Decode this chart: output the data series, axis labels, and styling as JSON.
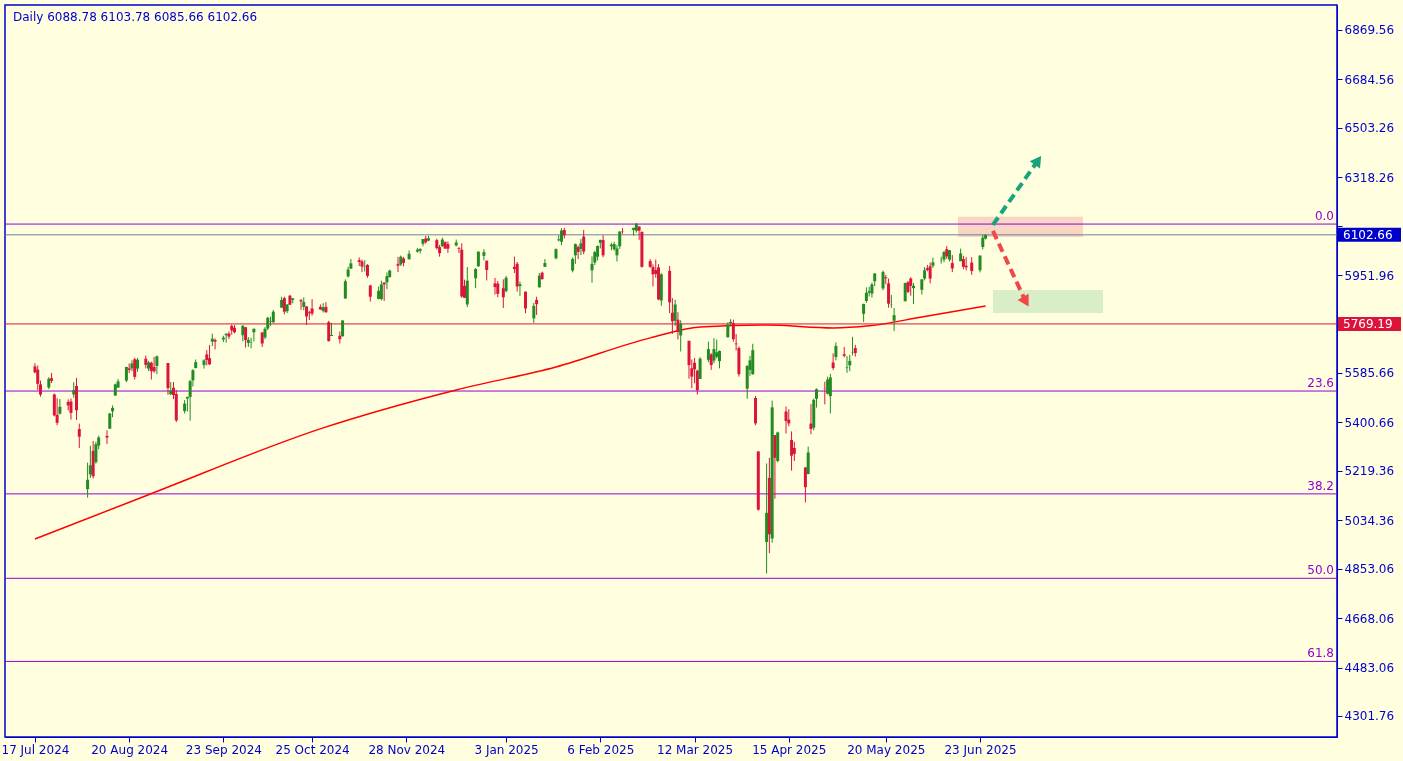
{
  "chart_data": {
    "type": "candlestick",
    "title": "Daily 6088.78 6103.78 6085.66 6102.66",
    "colors": [
      "#228b22",
      "#dc143c"
    ],
    "xlim": [
      "2024-07-08",
      "2025-10-28"
    ],
    "xticks": [
      {
        "value": "2024-07-17",
        "label": "17 Jul 2024"
      },
      {
        "value": "2024-08-20",
        "label": "20 Aug 2024"
      },
      {
        "value": "2024-09-23",
        "label": "23 Sep 2024"
      },
      {
        "value": "2024-10-25",
        "label": "25 Oct 2024"
      },
      {
        "value": "2024-11-28",
        "label": "28 Nov 2024"
      },
      {
        "value": "2025-01-03",
        "label": "3 Jan 2025"
      },
      {
        "value": "2025-02-06",
        "label": "6 Feb 2025"
      },
      {
        "value": "2025-03-12",
        "label": "12 Mar 2025"
      },
      {
        "value": "2025-04-15",
        "label": "15 Apr 2025"
      },
      {
        "value": "2025-05-20",
        "label": "20 May 2025"
      },
      {
        "value": "2025-06-23",
        "label": "23 Jun 2025"
      }
    ],
    "ylim": [
      4223,
      6963
    ],
    "yticks": [
      4301.76,
      4483.06,
      4668.06,
      4853.06,
      5034.36,
      5219.36,
      5400.66,
      5585.66,
      5769.19,
      5951.96,
      {
        "value": 6136.96,
        "label": null
      },
      6318.26,
      6503.26,
      6684.56,
      6869.56
    ],
    "grid": false,
    "series": [
      {
        "x": [
          "2024-07-17",
          "2024-07-18",
          "2024-07-19",
          "2024-07-22",
          "2024-07-23",
          "2024-07-24",
          "2024-07-25",
          "2024-07-26",
          "2024-07-29",
          "2024-07-30",
          "2024-07-31",
          "2024-08-01",
          "2024-08-02",
          "2024-08-05",
          "2024-08-06",
          "2024-08-07",
          "2024-08-08",
          "2024-08-09",
          "2024-08-12",
          "2024-08-13",
          "2024-08-14",
          "2024-08-15",
          "2024-08-16",
          "2024-08-19",
          "2024-08-20",
          "2024-08-21",
          "2024-08-22",
          "2024-08-23",
          "2024-08-26",
          "2024-08-27",
          "2024-08-28",
          "2024-08-29",
          "2024-08-30",
          "2024-09-03",
          "2024-09-04",
          "2024-09-05",
          "2024-09-06",
          "2024-09-09",
          "2024-09-10",
          "2024-09-11",
          "2024-09-12",
          "2024-09-13",
          "2024-09-16",
          "2024-09-17",
          "2024-09-18",
          "2024-09-19",
          "2024-09-20",
          "2024-09-23",
          "2024-09-24",
          "2024-09-25",
          "2024-09-26",
          "2024-09-27",
          "2024-09-30",
          "2024-10-01",
          "2024-10-02",
          "2024-10-03",
          "2024-10-04",
          "2024-10-07",
          "2024-10-08",
          "2024-10-09",
          "2024-10-10",
          "2024-10-11",
          "2024-10-14",
          "2024-10-15",
          "2024-10-16",
          "2024-10-17",
          "2024-10-18",
          "2024-10-21",
          "2024-10-22",
          "2024-10-23",
          "2024-10-24",
          "2024-10-25",
          "2024-10-28",
          "2024-10-29",
          "2024-10-30",
          "2024-10-31",
          "2024-11-01",
          "2024-11-04",
          "2024-11-05",
          "2024-11-06",
          "2024-11-07",
          "2024-11-08",
          "2024-11-11",
          "2024-11-12",
          "2024-11-13",
          "2024-11-14",
          "2024-11-15",
          "2024-11-18",
          "2024-11-19",
          "2024-11-20",
          "2024-11-21",
          "2024-11-22",
          "2024-11-25",
          "2024-11-26",
          "2024-11-27",
          "2024-11-29",
          "2024-12-02",
          "2024-12-03",
          "2024-12-04",
          "2024-12-05",
          "2024-12-06",
          "2024-12-09",
          "2024-12-10",
          "2024-12-11",
          "2024-12-12",
          "2024-12-13",
          "2024-12-16",
          "2024-12-17",
          "2024-12-18",
          "2024-12-19",
          "2024-12-20",
          "2024-12-23",
          "2024-12-24",
          "2024-12-26",
          "2024-12-27",
          "2024-12-30",
          "2024-12-31",
          "2025-01-02",
          "2025-01-03",
          "2025-01-06",
          "2025-01-07",
          "2025-01-08",
          "2025-01-10",
          "2025-01-13",
          "2025-01-14",
          "2025-01-15",
          "2025-01-16",
          "2025-01-17",
          "2025-01-21",
          "2025-01-22",
          "2025-01-23",
          "2025-01-24",
          "2025-01-27",
          "2025-01-28",
          "2025-01-29",
          "2025-01-30",
          "2025-01-31",
          "2025-02-03",
          "2025-02-04",
          "2025-02-05",
          "2025-02-06",
          "2025-02-07",
          "2025-02-10",
          "2025-02-11",
          "2025-02-12",
          "2025-02-13",
          "2025-02-14",
          "2025-02-18",
          "2025-02-19",
          "2025-02-20",
          "2025-02-21",
          "2025-02-24",
          "2025-02-25",
          "2025-02-26",
          "2025-02-27",
          "2025-02-28",
          "2025-03-03",
          "2025-03-04",
          "2025-03-05",
          "2025-03-06",
          "2025-03-07",
          "2025-03-10",
          "2025-03-11",
          "2025-03-12",
          "2025-03-13",
          "2025-03-14",
          "2025-03-17",
          "2025-03-18",
          "2025-03-19",
          "2025-03-20",
          "2025-03-21",
          "2025-03-24",
          "2025-03-25",
          "2025-03-26",
          "2025-03-27",
          "2025-03-28",
          "2025-03-31",
          "2025-04-01",
          "2025-04-02",
          "2025-04-03",
          "2025-04-04",
          "2025-04-07",
          "2025-04-08",
          "2025-04-09",
          "2025-04-10",
          "2025-04-11",
          "2025-04-14",
          "2025-04-15",
          "2025-04-16",
          "2025-04-17",
          "2025-04-21",
          "2025-04-22",
          "2025-04-23",
          "2025-04-24",
          "2025-04-25",
          "2025-04-28",
          "2025-04-29",
          "2025-04-30",
          "2025-05-01",
          "2025-05-02",
          "2025-05-05",
          "2025-05-06",
          "2025-05-07",
          "2025-05-08",
          "2025-05-09",
          "2025-05-12",
          "2025-05-13",
          "2025-05-14",
          "2025-05-15",
          "2025-05-16",
          "2025-05-19",
          "2025-05-20",
          "2025-05-21",
          "2025-05-22",
          "2025-05-23",
          "2025-05-27",
          "2025-05-28",
          "2025-05-29",
          "2025-05-30",
          "2025-06-02",
          "2025-06-03",
          "2025-06-04",
          "2025-06-05",
          "2025-06-06",
          "2025-06-09",
          "2025-06-10",
          "2025-06-11",
          "2025-06-12",
          "2025-06-13",
          "2025-06-16",
          "2025-06-17",
          "2025-06-18",
          "2025-06-20",
          "2025-06-23",
          "2025-06-24",
          "2025-06-25"
        ],
        "ohlc": [
          [
            5610,
            5622,
            5584,
            5588
          ],
          [
            5598,
            5614,
            5522,
            5545
          ],
          [
            5543,
            5557,
            5497,
            5505
          ],
          [
            5531,
            5570,
            5525,
            5564
          ],
          [
            5566,
            5586,
            5548,
            5556
          ],
          [
            5505,
            5509,
            5423,
            5427
          ],
          [
            5429,
            5491,
            5390,
            5399
          ],
          [
            5433,
            5488,
            5430,
            5459
          ],
          [
            5477,
            5487,
            5445,
            5464
          ],
          [
            5479,
            5490,
            5411,
            5436
          ],
          [
            5505,
            5551,
            5493,
            5522
          ],
          [
            5537,
            5567,
            5410,
            5446
          ],
          [
            5376,
            5396,
            5305,
            5347
          ],
          [
            5151,
            5250,
            5119,
            5186
          ],
          [
            5206,
            5313,
            5193,
            5240
          ],
          [
            5294,
            5331,
            5191,
            5199
          ],
          [
            5252,
            5328,
            5246,
            5319
          ],
          [
            5314,
            5351,
            5300,
            5344
          ],
          [
            5350,
            5371,
            5320,
            5344
          ],
          [
            5377,
            5436,
            5377,
            5434
          ],
          [
            5442,
            5464,
            5420,
            5455
          ],
          [
            5501,
            5546,
            5500,
            5543
          ],
          [
            5531,
            5563,
            5530,
            5554
          ],
          [
            5557,
            5609,
            5551,
            5608
          ],
          [
            5603,
            5621,
            5586,
            5597
          ],
          [
            5603,
            5633,
            5592,
            5621
          ],
          [
            5637,
            5643,
            5561,
            5571
          ],
          [
            5602,
            5642,
            5590,
            5635
          ],
          [
            5639,
            5651,
            5603,
            5616
          ],
          [
            5602,
            5631,
            5593,
            5625
          ],
          [
            5624,
            5628,
            5561,
            5592
          ],
          [
            5608,
            5646,
            5586,
            5592
          ],
          [
            5612,
            5651,
            5581,
            5648
          ],
          [
            5623,
            5623,
            5504,
            5529
          ],
          [
            5506,
            5552,
            5503,
            5520
          ],
          [
            5530,
            5552,
            5488,
            5503
          ],
          [
            5507,
            5522,
            5402,
            5408
          ],
          [
            5443,
            5484,
            5434,
            5471
          ],
          [
            5490,
            5497,
            5441,
            5496
          ],
          [
            5496,
            5560,
            5407,
            5555
          ],
          [
            5558,
            5600,
            5535,
            5596
          ],
          [
            5604,
            5636,
            5603,
            5626
          ],
          [
            5615,
            5637,
            5602,
            5633
          ],
          [
            5655,
            5671,
            5614,
            5634
          ],
          [
            5641,
            5690,
            5615,
            5618
          ],
          [
            5703,
            5733,
            5686,
            5714
          ],
          [
            5709,
            5715,
            5674,
            5703
          ],
          [
            5711,
            5725,
            5701,
            5718
          ],
          [
            5727,
            5735,
            5699,
            5732
          ],
          [
            5733,
            5741,
            5713,
            5722
          ],
          [
            5762,
            5767,
            5729,
            5745
          ],
          [
            5755,
            5765,
            5734,
            5738
          ],
          [
            5727,
            5765,
            5704,
            5762
          ],
          [
            5757,
            5757,
            5681,
            5709
          ],
          [
            5698,
            5720,
            5683,
            5710
          ],
          [
            5698,
            5718,
            5678,
            5699
          ],
          [
            5738,
            5752,
            5704,
            5751
          ],
          [
            5737,
            5739,
            5683,
            5696
          ],
          [
            5719,
            5757,
            5712,
            5751
          ],
          [
            5752,
            5796,
            5746,
            5792
          ],
          [
            5778,
            5796,
            5762,
            5780
          ],
          [
            5775,
            5822,
            5775,
            5815
          ],
          [
            5830,
            5871,
            5829,
            5859
          ],
          [
            5866,
            5871,
            5805,
            5815
          ],
          [
            5817,
            5843,
            5810,
            5842
          ],
          [
            5875,
            5878,
            5840,
            5841
          ],
          [
            5859,
            5866,
            5847,
            5865
          ],
          [
            5858,
            5863,
            5822,
            5853
          ],
          [
            5833,
            5869,
            5820,
            5851
          ],
          [
            5835,
            5835,
            5765,
            5797
          ],
          [
            5813,
            5818,
            5784,
            5809
          ],
          [
            5827,
            5862,
            5800,
            5808
          ],
          [
            5833,
            5842,
            5823,
            5823
          ],
          [
            5818,
            5847,
            5812,
            5832
          ],
          [
            5833,
            5851,
            5811,
            5813
          ],
          [
            5776,
            5781,
            5703,
            5705
          ],
          [
            5724,
            5773,
            5724,
            5728
          ],
          [
            5725,
            5741,
            5696,
            5712
          ],
          [
            5723,
            5783,
            5722,
            5782
          ],
          [
            5864,
            5936,
            5864,
            5929
          ],
          [
            5947,
            5983,
            5943,
            5973
          ],
          [
            5976,
            6012,
            5976,
            5996
          ],
          [
            6008,
            6018,
            5986,
            6001
          ],
          [
            6003,
            6010,
            5963,
            5984
          ],
          [
            5985,
            6008,
            5965,
            5986
          ],
          [
            5990,
            5993,
            5942,
            5949
          ],
          [
            5913,
            5916,
            5853,
            5871
          ],
          [
            5863,
            5909,
            5861,
            5893
          ],
          [
            5862,
            5931,
            5857,
            5917
          ],
          [
            5924,
            5925,
            5855,
            5917
          ],
          [
            5925,
            5962,
            5899,
            5948
          ],
          [
            5944,
            5972,
            5944,
            5969
          ],
          [
            5993,
            6020,
            5963,
            5987
          ],
          [
            5992,
            6025,
            5986,
            6021
          ],
          [
            6014,
            6020,
            5985,
            5998
          ],
          [
            6011,
            6044,
            6011,
            6032
          ],
          [
            6040,
            6053,
            6036,
            6047
          ],
          [
            6043,
            6052,
            6033,
            6050
          ],
          [
            6069,
            6087,
            6060,
            6087
          ],
          [
            6089,
            6099,
            6070,
            6075
          ],
          [
            6081,
            6099,
            6079,
            6090
          ],
          [
            6083,
            6088,
            6048,
            6053
          ],
          [
            6057,
            6065,
            6021,
            6034
          ],
          [
            6060,
            6092,
            6058,
            6085
          ],
          [
            6075,
            6079,
            6051,
            6051
          ],
          [
            6068,
            6078,
            6035,
            6051
          ],
          [
            6063,
            6085,
            6059,
            6074
          ],
          [
            6053,
            6057,
            6035,
            6050
          ],
          [
            6047,
            6071,
            5867,
            5872
          ],
          [
            5912,
            5935,
            5866,
            5867
          ],
          [
            5842,
            5982,
            5832,
            5931
          ],
          [
            5940,
            5978,
            5903,
            5975
          ],
          [
            5985,
            6040,
            5983,
            6040
          ],
          [
            6024,
            6049,
            6007,
            6038
          ],
          [
            6006,
            6006,
            5932,
            5971
          ],
          [
            5921,
            5941,
            5879,
            5907
          ],
          [
            5920,
            5930,
            5869,
            5882
          ],
          [
            5903,
            5936,
            5829,
            5869
          ],
          [
            5892,
            5949,
            5888,
            5942
          ],
          [
            5983,
            6021,
            5960,
            5975
          ],
          [
            5994,
            6001,
            5890,
            5909
          ],
          [
            5911,
            5928,
            5874,
            5918
          ],
          [
            5890,
            5890,
            5809,
            5827
          ],
          [
            5790,
            5848,
            5773,
            5837
          ],
          [
            5859,
            5871,
            5803,
            5843
          ],
          [
            5906,
            5960,
            5906,
            5950
          ],
          [
            5961,
            5965,
            5935,
            5937
          ],
          [
            5983,
            6012,
            5983,
            5997
          ],
          [
            6015,
            6052,
            6011,
            6049
          ],
          [
            6082,
            6101,
            6078,
            6086
          ],
          [
            6077,
            6128,
            6064,
            6119
          ],
          [
            6121,
            6129,
            6089,
            6101
          ],
          [
            5969,
            6018,
            5962,
            6012
          ],
          [
            6026,
            6070,
            5994,
            6068
          ],
          [
            6057,
            6063,
            6012,
            6039
          ],
          [
            6050,
            6087,
            6027,
            6071
          ],
          [
            6096,
            6121,
            6030,
            6040
          ],
          [
            5970,
            6022,
            5923,
            5994
          ],
          [
            5999,
            6043,
            5990,
            6038
          ],
          [
            6021,
            6063,
            6007,
            6061
          ],
          [
            6073,
            6084,
            6052,
            6084
          ],
          [
            6083,
            6101,
            6019,
            6026
          ],
          [
            6060,
            6073,
            6045,
            6066
          ],
          [
            6049,
            6076,
            6043,
            6068
          ],
          [
            6026,
            6064,
            6003,
            6052
          ],
          [
            6060,
            6116,
            6050,
            6115
          ],
          [
            6115,
            6128,
            6107,
            6114
          ],
          [
            6121,
            6129,
            6100,
            6129
          ],
          [
            6118,
            6147,
            6111,
            6144
          ],
          [
            6134,
            6134,
            6084,
            6118
          ],
          [
            6114,
            6115,
            5980,
            5983
          ],
          [
            6004,
            6012,
            5979,
            5983
          ],
          [
            5982,
            5992,
            5909,
            5955
          ],
          [
            5971,
            6010,
            5942,
            5956
          ],
          [
            5981,
            5993,
            5858,
            5861
          ],
          [
            5857,
            5959,
            5837,
            5955
          ],
          [
            5968,
            5986,
            5810,
            5850
          ],
          [
            5811,
            5866,
            5732,
            5779
          ],
          [
            5781,
            5860,
            5762,
            5842
          ],
          [
            5785,
            5813,
            5711,
            5739
          ],
          [
            5726,
            5783,
            5666,
            5770
          ],
          [
            5706,
            5706,
            5564,
            5615
          ],
          [
            5603,
            5636,
            5529,
            5572
          ],
          [
            5624,
            5642,
            5547,
            5599
          ],
          [
            5594,
            5598,
            5505,
            5521
          ],
          [
            5563,
            5645,
            5563,
            5639
          ],
          [
            5635,
            5703,
            5626,
            5675
          ],
          [
            5655,
            5660,
            5597,
            5615
          ],
          [
            5632,
            5716,
            5622,
            5675
          ],
          [
            5646,
            5711,
            5640,
            5663
          ],
          [
            5630,
            5670,
            5603,
            5668
          ],
          [
            5719,
            5775,
            5719,
            5767
          ],
          [
            5772,
            5787,
            5764,
            5777
          ],
          [
            5772,
            5785,
            5703,
            5712
          ],
          [
            5696,
            5732,
            5670,
            5693
          ],
          [
            5679,
            5685,
            5572,
            5581
          ],
          [
            5527,
            5615,
            5489,
            5612
          ],
          [
            5597,
            5650,
            5575,
            5633
          ],
          [
            5581,
            5695,
            5579,
            5671
          ],
          [
            5492,
            5500,
            5390,
            5397
          ],
          [
            5292,
            5292,
            5070,
            5074
          ],
          [
            4953,
            5247,
            4835,
            5062
          ],
          [
            5193,
            5268,
            4911,
            4982
          ],
          [
            4966,
            5482,
            4950,
            5457
          ],
          [
            5353,
            5353,
            5115,
            5268
          ],
          [
            5256,
            5366,
            5251,
            5363
          ],
          [
            5441,
            5460,
            5359,
            5406
          ],
          [
            5411,
            5450,
            5386,
            5397
          ],
          [
            5335,
            5367,
            5220,
            5276
          ],
          [
            5305,
            5328,
            5256,
            5283
          ],
          [
            5232,
            5233,
            5101,
            5158
          ],
          [
            5207,
            5310,
            5207,
            5288
          ],
          [
            5396,
            5469,
            5356,
            5376
          ],
          [
            5381,
            5490,
            5371,
            5485
          ],
          [
            5489,
            5528,
            5456,
            5525
          ],
          [
            5529,
            5553,
            5468,
            5528
          ],
          [
            5508,
            5572,
            5505,
            5561
          ],
          [
            5499,
            5582,
            5434,
            5569
          ],
          [
            5625,
            5659,
            5597,
            5604
          ],
          [
            5645,
            5700,
            5633,
            5687
          ],
          [
            5656,
            5683,
            5644,
            5650
          ],
          [
            5605,
            5649,
            5586,
            5607
          ],
          [
            5614,
            5654,
            5592,
            5631
          ],
          [
            5663,
            5721,
            5651,
            5664
          ],
          [
            5679,
            5691,
            5647,
            5660
          ],
          [
            5807,
            5845,
            5776,
            5844
          ],
          [
            5855,
            5906,
            5848,
            5886
          ],
          [
            5886,
            5908,
            5872,
            5892
          ],
          [
            5883,
            5924,
            5868,
            5917
          ],
          [
            5929,
            5959,
            5911,
            5958
          ],
          [
            5902,
            5969,
            5895,
            5964
          ],
          [
            5944,
            5953,
            5918,
            5940
          ],
          [
            5921,
            5939,
            5830,
            5845
          ],
          [
            5841,
            5878,
            5829,
            5842
          ],
          [
            5781,
            5829,
            5742,
            5802
          ],
          [
            5854,
            5924,
            5854,
            5922
          ],
          [
            5925,
            5930,
            5885,
            5889
          ],
          [
            5939,
            5944,
            5875,
            5912
          ],
          [
            5903,
            5922,
            5844,
            5912
          ],
          [
            5897,
            5937,
            5879,
            5936
          ],
          [
            5939,
            5982,
            5932,
            5970
          ],
          [
            5978,
            5990,
            5966,
            5971
          ],
          [
            5985,
            5999,
            5921,
            5939
          ],
          [
            5987,
            6017,
            5979,
            6000
          ],
          [
            6005,
            6021,
            5995,
            6006
          ],
          [
            6010,
            6043,
            6000,
            6038
          ],
          [
            6049,
            6060,
            6013,
            6022
          ],
          [
            6010,
            6046,
            6003,
            6045
          ],
          [
            5997,
            6027,
            5963,
            5977
          ],
          [
            6004,
            6051,
            6004,
            6033
          ],
          [
            6012,
            6024,
            5974,
            5983
          ],
          [
            5987,
            6019,
            5970,
            5981
          ],
          [
            5999,
            6019,
            5953,
            5967
          ],
          [
            5970,
            6026,
            5962,
            6025
          ],
          [
            6057,
            6102,
            6048,
            6092
          ],
          [
            6088.78,
            6103.78,
            6085.66,
            6102.66
          ]
        ]
      },
      {
        "type": "line",
        "color": "#ff0000",
        "x": [
          "2024-07-17",
          "2024-08-27",
          "2024-10-29",
          "2024-12-16",
          "2025-01-21",
          "2025-02-24",
          "2025-03-14",
          "2025-04-07",
          "2025-05-01",
          "2025-05-14",
          "2025-06-02",
          "2025-06-25"
        ],
        "values": [
          4964,
          5130,
          5380,
          5522,
          5608,
          5717,
          5758,
          5765,
          5754,
          5762,
          5795,
          5836
        ]
      }
    ],
    "ref_lines": [
      {
        "axis": "y",
        "value": 6143,
        "color": "#9400d3"
      },
      {
        "axis": "y",
        "value": 6102.66,
        "label": "6102.66",
        "color": "#708090"
      },
      {
        "axis": "y",
        "value": 5769.19,
        "label": "5769.19",
        "color": "#dc143c"
      },
      {
        "axis": "y",
        "value": 5518,
        "color": "#9400d3"
      },
      {
        "axis": "y",
        "value": 5133,
        "color": "#9400d3"
      },
      {
        "axis": "y",
        "value": 4817,
        "color": "#9400d3"
      },
      {
        "axis": "y",
        "value": 4506,
        "color": "#9400d3"
      }
    ],
    "bands": [
      {
        "axis": "y",
        "from": 6095,
        "to": 6170,
        "color": "#f8d0c0"
      },
      {
        "axis": "y",
        "from": 5810,
        "to": 5896,
        "color": "#d4ecc4"
      }
    ],
    "annotations": [
      {
        "text": "0.0",
        "y": 6143
      },
      {
        "text": "23.6",
        "y": 5518
      },
      {
        "text": "38.2",
        "y": 5133
      },
      {
        "text": "50.0",
        "y": 4817
      },
      {
        "text": "61.8",
        "y": 4506
      }
    ]
  }
}
